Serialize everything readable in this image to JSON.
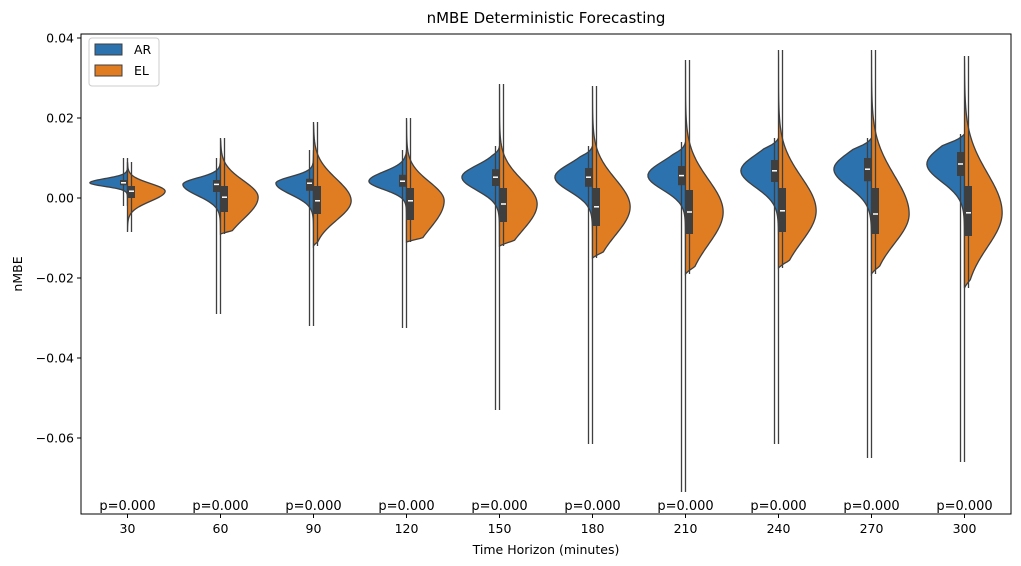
{
  "chart_data": {
    "type": "violin",
    "title": "nMBE Deterministic Forecasting",
    "xlabel": "Time Horizon (minutes)",
    "ylabel": "nMBE",
    "ylim": [
      -0.079,
      0.041
    ],
    "yticks": [
      0.04,
      0.02,
      0.0,
      -0.02,
      -0.04,
      -0.06
    ],
    "ytick_labels": [
      "0.04",
      "0.02",
      "0.00",
      "−0.02",
      "−0.04",
      "−0.06"
    ],
    "categories": [
      "30",
      "60",
      "90",
      "120",
      "150",
      "180",
      "210",
      "240",
      "270",
      "300"
    ],
    "annotations": [
      "p=0.000",
      "p=0.000",
      "p=0.000",
      "p=0.000",
      "p=0.000",
      "p=0.000",
      "p=0.000",
      "p=0.000",
      "p=0.000",
      "p=0.000"
    ],
    "legend": {
      "position": "top-left"
    },
    "series": [
      {
        "name": "AR",
        "color": "#2b72ae",
        "median": [
          0.0038,
          0.0034,
          0.0037,
          0.0042,
          0.0052,
          0.0052,
          0.0056,
          0.0068,
          0.0072,
          0.0085
        ],
        "q1": [
          0.0032,
          0.0015,
          0.0018,
          0.0028,
          0.003,
          0.0028,
          0.0032,
          0.004,
          0.0042,
          0.0055
        ],
        "q3": [
          0.0045,
          0.0045,
          0.0048,
          0.0058,
          0.0072,
          0.0075,
          0.008,
          0.0095,
          0.01,
          0.0115
        ],
        "min": [
          -0.002,
          -0.029,
          -0.032,
          -0.0325,
          -0.053,
          -0.0615,
          -0.0735,
          -0.0615,
          -0.065,
          -0.066
        ],
        "max": [
          0.01,
          0.01,
          0.012,
          0.012,
          0.013,
          0.013,
          0.014,
          0.015,
          0.015,
          0.016
        ]
      },
      {
        "name": "EL",
        "color": "#e07d22",
        "median": [
          0.0017,
          0.0002,
          -0.0007,
          -0.0007,
          -0.0015,
          -0.0022,
          -0.0035,
          -0.0032,
          -0.004,
          -0.0037
        ],
        "q1": [
          0.0,
          -0.0035,
          -0.004,
          -0.0055,
          -0.006,
          -0.007,
          -0.009,
          -0.0085,
          -0.009,
          -0.0095
        ],
        "q3": [
          0.003,
          0.003,
          0.003,
          0.0025,
          0.0025,
          0.0025,
          0.002,
          0.0025,
          0.0025,
          0.003
        ],
        "min": [
          -0.0085,
          -0.009,
          -0.012,
          -0.011,
          -0.012,
          -0.015,
          -0.019,
          -0.0175,
          -0.019,
          -0.0225
        ],
        "max": [
          0.009,
          0.015,
          0.019,
          0.02,
          0.0285,
          0.028,
          0.0345,
          0.037,
          0.037,
          0.0355
        ]
      }
    ]
  }
}
